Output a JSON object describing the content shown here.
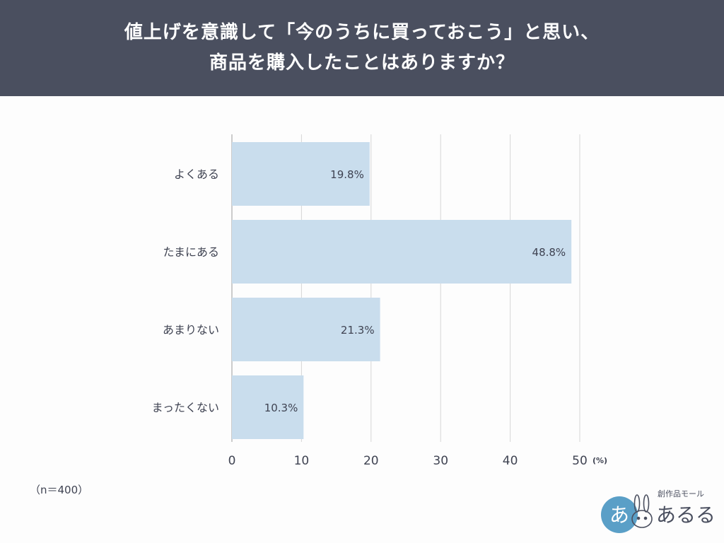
{
  "chart_data": {
    "type": "bar",
    "orientation": "horizontal",
    "title_line1": "値上げを意識して「今のうちに買っておこう」と思い、",
    "title_line2": "商品を購入したことはありますか？",
    "categories": [
      "よくある",
      "たまにある",
      "あまりない",
      "まったくない"
    ],
    "values": [
      19.8,
      48.8,
      21.3,
      10.3
    ],
    "value_labels": [
      "19.8%",
      "48.8%",
      "21.3%",
      "10.3%"
    ],
    "xlim": [
      0,
      50
    ],
    "ticks": [
      "0",
      "10",
      "20",
      "30",
      "40",
      "50"
    ],
    "tick_values": [
      0,
      10,
      20,
      30,
      40,
      50
    ],
    "unit": "(%)",
    "grid": true,
    "bar_color": "#c9dded",
    "grid_color": "#d6d6d6"
  },
  "sample_note": "（n＝400）",
  "logo": {
    "name": "logo-arul",
    "tagline": "創作品モール",
    "wordmark": "あるる",
    "badge_glyph": "あ",
    "color": "#5a9fc7"
  }
}
